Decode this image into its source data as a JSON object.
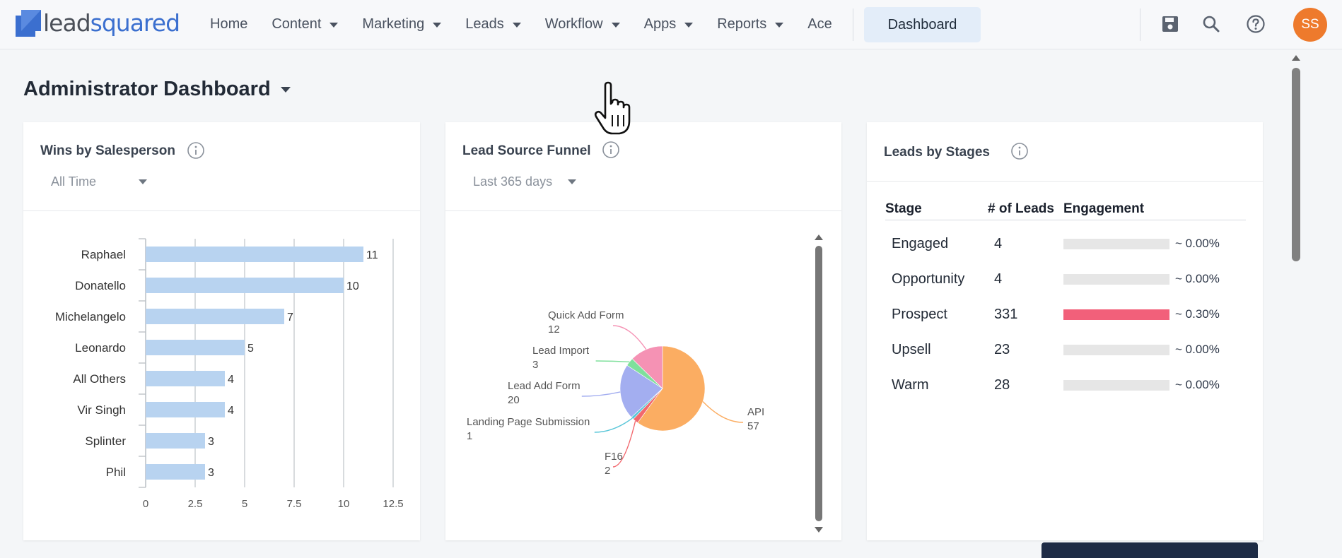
{
  "brand": {
    "logo_lead": "lead",
    "logo_squared": "squared",
    "accent": "#3b6fcf"
  },
  "nav": {
    "items": [
      {
        "label": "Home",
        "dropdown": false
      },
      {
        "label": "Content",
        "dropdown": true
      },
      {
        "label": "Marketing",
        "dropdown": true
      },
      {
        "label": "Leads",
        "dropdown": true
      },
      {
        "label": "Workflow",
        "dropdown": true
      },
      {
        "label": "Apps",
        "dropdown": true
      },
      {
        "label": "Reports",
        "dropdown": true
      },
      {
        "label": "Ace",
        "dropdown": false
      }
    ],
    "active_button": "Dashboard",
    "user_initials": "SS"
  },
  "page": {
    "title": "Administrator Dashboard"
  },
  "wins_card": {
    "title": "Wins by Salesperson",
    "filter": "All Time",
    "chart_data": {
      "type": "bar",
      "orientation": "horizontal",
      "categories": [
        "Raphael",
        "Donatello",
        "Michelangelo",
        "Leonardo",
        "All Others",
        "Vir Singh",
        "Splinter",
        "Phil"
      ],
      "values": [
        11,
        10,
        7,
        5,
        4,
        4,
        3,
        3
      ],
      "xticks": [
        "0",
        "2.5",
        "5",
        "7.5",
        "10",
        "12.5"
      ],
      "xlim": [
        0,
        12.5
      ],
      "grid": true,
      "color": "#b8d3f0"
    }
  },
  "funnel_card": {
    "title": "Lead Source Funnel",
    "filter": "Last 365 days",
    "chart_data": {
      "type": "pie",
      "slices": [
        {
          "label": "API",
          "value": 57,
          "color": "#fbad62"
        },
        {
          "label": "F16",
          "value": 2,
          "color": "#f2686e"
        },
        {
          "label": "Landing Page Submission",
          "value": 1,
          "color": "#5bc7d9"
        },
        {
          "label": "Lead Add Form",
          "value": 20,
          "color": "#a3aef0"
        },
        {
          "label": "Lead Import",
          "value": 3,
          "color": "#7fe09c"
        },
        {
          "label": "Quick Add Form",
          "value": 12,
          "color": "#f592b4"
        }
      ]
    }
  },
  "stages_card": {
    "title": "Leads by Stages",
    "headers": {
      "stage": "Stage",
      "leads": "# of Leads",
      "engagement": "Engagement"
    },
    "rows": [
      {
        "stage": "Engaged",
        "leads": "4",
        "engagement": "~ 0.00%",
        "fill": 0,
        "color": "#e6e6e6"
      },
      {
        "stage": "Opportunity",
        "leads": "4",
        "engagement": "~ 0.00%",
        "fill": 0,
        "color": "#e6e6e6"
      },
      {
        "stage": "Prospect",
        "leads": "331",
        "engagement": "~ 0.30%",
        "fill": 1,
        "color": "#f2607a"
      },
      {
        "stage": "Upsell",
        "leads": "23",
        "engagement": "~ 0.00%",
        "fill": 0,
        "color": "#e6e6e6"
      },
      {
        "stage": "Warm",
        "leads": "28",
        "engagement": "~ 0.00%",
        "fill": 0,
        "color": "#e6e6e6"
      }
    ]
  }
}
